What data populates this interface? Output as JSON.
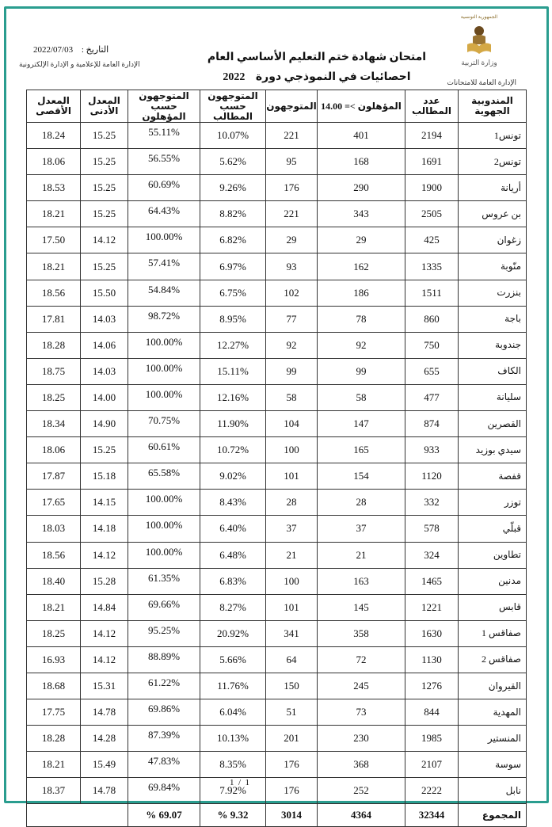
{
  "header": {
    "logo_top_text": "الجمهورية التونسية",
    "ministry": "وزارة التربية",
    "exam_dept": "الإدارة العامة للامتحانات",
    "date_label": "التاريخ :",
    "date_value": "2022/07/03",
    "media_dept": "الإدارة العامة للإعلامية و الإدارة الإلكترونية",
    "title_line1": "امتحان شهادة ختم التعليم الأساسي العام",
    "title_line2": "احصائيات في النموذجي   دورة",
    "year": "2022"
  },
  "accent_color": "#2a9d8f",
  "table": {
    "columns": [
      "المندوبية الجهوية",
      "عدد المطالب",
      "المؤهلون >= 14.00",
      "المتوجهون",
      "المتوجهون حسب المطالب",
      "المتوجهون حسب المؤهلون",
      "المعدل الأدنى",
      "المعدل الأقصى"
    ],
    "rows": [
      [
        "تونس1",
        "2194",
        "401",
        "221",
        "10.07%",
        "55.11%",
        "15.25",
        "18.24"
      ],
      [
        "تونس2",
        "1691",
        "168",
        "95",
        "5.62%",
        "56.55%",
        "15.25",
        "18.06"
      ],
      [
        "أريانة",
        "1900",
        "290",
        "176",
        "9.26%",
        "60.69%",
        "15.25",
        "18.53"
      ],
      [
        "بن عروس",
        "2505",
        "343",
        "221",
        "8.82%",
        "64.43%",
        "15.25",
        "18.21"
      ],
      [
        "زغوان",
        "425",
        "29",
        "29",
        "6.82%",
        "100.00%",
        "14.12",
        "17.50"
      ],
      [
        "منّوبة",
        "1335",
        "162",
        "93",
        "6.97%",
        "57.41%",
        "15.25",
        "18.21"
      ],
      [
        "بنزرت",
        "1511",
        "186",
        "102",
        "6.75%",
        "54.84%",
        "15.50",
        "18.56"
      ],
      [
        "باجة",
        "860",
        "78",
        "77",
        "8.95%",
        "98.72%",
        "14.03",
        "17.81"
      ],
      [
        "جندوبة",
        "750",
        "92",
        "92",
        "12.27%",
        "100.00%",
        "14.06",
        "18.28"
      ],
      [
        "الكاف",
        "655",
        "99",
        "99",
        "15.11%",
        "100.00%",
        "14.03",
        "18.75"
      ],
      [
        "سليانة",
        "477",
        "58",
        "58",
        "12.16%",
        "100.00%",
        "14.00",
        "18.25"
      ],
      [
        "القصرين",
        "874",
        "147",
        "104",
        "11.90%",
        "70.75%",
        "14.90",
        "18.34"
      ],
      [
        "سيدي بوزيد",
        "933",
        "165",
        "100",
        "10.72%",
        "60.61%",
        "15.25",
        "18.06"
      ],
      [
        "قفصة",
        "1120",
        "154",
        "101",
        "9.02%",
        "65.58%",
        "15.18",
        "17.87"
      ],
      [
        "توزر",
        "332",
        "28",
        "28",
        "8.43%",
        "100.00%",
        "14.15",
        "17.65"
      ],
      [
        "قبلّي",
        "578",
        "37",
        "37",
        "6.40%",
        "100.00%",
        "14.18",
        "18.03"
      ],
      [
        "تطاوين",
        "324",
        "21",
        "21",
        "6.48%",
        "100.00%",
        "14.12",
        "18.56"
      ],
      [
        "مدنين",
        "1465",
        "163",
        "100",
        "6.83%",
        "61.35%",
        "15.28",
        "18.40"
      ],
      [
        "قابس",
        "1221",
        "145",
        "101",
        "8.27%",
        "69.66%",
        "14.84",
        "18.21"
      ],
      [
        "صفاقس 1",
        "1630",
        "358",
        "341",
        "20.92%",
        "95.25%",
        "14.12",
        "18.25"
      ],
      [
        "صفاقس 2",
        "1130",
        "72",
        "64",
        "5.66%",
        "88.89%",
        "14.12",
        "16.93"
      ],
      [
        "القيروان",
        "1276",
        "245",
        "150",
        "11.76%",
        "61.22%",
        "15.31",
        "18.68"
      ],
      [
        "المهدية",
        "844",
        "73",
        "51",
        "6.04%",
        "69.86%",
        "14.78",
        "17.75"
      ],
      [
        "المنستير",
        "1985",
        "230",
        "201",
        "10.13%",
        "87.39%",
        "14.28",
        "18.28"
      ],
      [
        "سوسة",
        "2107",
        "368",
        "176",
        "8.35%",
        "47.83%",
        "15.49",
        "18.21"
      ],
      [
        "نابل",
        "2222",
        "252",
        "176",
        "7.92%",
        "69.84%",
        "14.78",
        "18.37"
      ]
    ],
    "total": [
      "المجموع",
      "32344",
      "4364",
      "3014",
      "9.32 %",
      "69.07 %"
    ]
  },
  "footer": {
    "page": "1  /  1"
  }
}
